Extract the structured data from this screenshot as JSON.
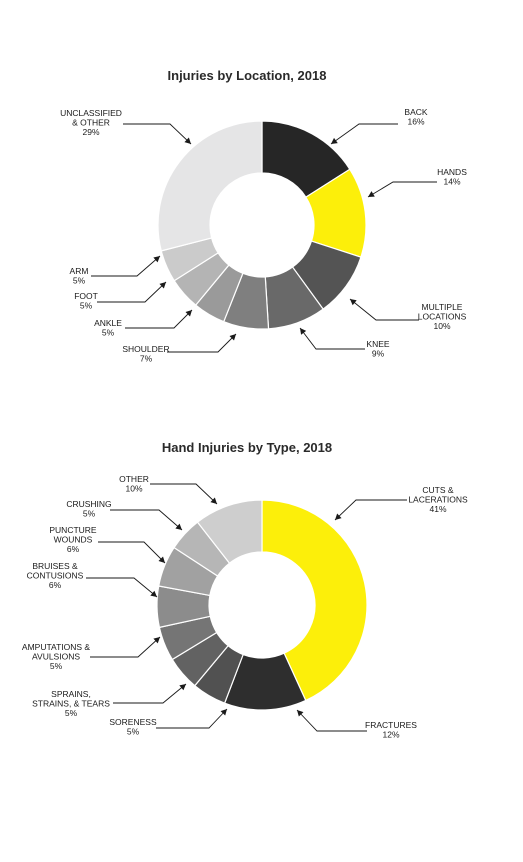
{
  "chart_data": [
    {
      "type": "pie",
      "title": "Injuries by Location, 2018",
      "slices": [
        {
          "label": "BACK",
          "value": 16,
          "value_label": "16%",
          "color": "#262626"
        },
        {
          "label": "HANDS",
          "value": 14,
          "value_label": "14%",
          "color": "#fcef0a"
        },
        {
          "label": "MULTIPLE LOCATIONS",
          "value": 10,
          "value_label": "10%",
          "color": "#545454"
        },
        {
          "label": "KNEE",
          "value": 9,
          "value_label": "9%",
          "color": "#696969"
        },
        {
          "label": "SHOULDER",
          "value": 7,
          "value_label": "7%",
          "color": "#7f7f7f"
        },
        {
          "label": "ANKLE",
          "value": 5,
          "value_label": "5%",
          "color": "#9a9a9a"
        },
        {
          "label": "FOOT",
          "value": 5,
          "value_label": "5%",
          "color": "#b4b4b4"
        },
        {
          "label": "ARM",
          "value": 5,
          "value_label": "5%",
          "color": "#cbcbcb"
        },
        {
          "label": "UNCLASSIFIED & OTHER",
          "value": 29,
          "value_label": "29%",
          "color": "#e5e5e6"
        }
      ]
    },
    {
      "type": "pie",
      "title": "Hand Injuries by Type, 2018",
      "slices": [
        {
          "label": "CUTS & LACERATIONS",
          "value": 41,
          "value_label": "41%",
          "color": "#fcef0a"
        },
        {
          "label": "FRACTURES",
          "value": 12,
          "value_label": "12%",
          "color": "#2e2e2e"
        },
        {
          "label": "SORENESS",
          "value": 5,
          "value_label": "5%",
          "color": "#515151"
        },
        {
          "label": "SPRAINS, STRAINS, & TEARS",
          "value": 5,
          "value_label": "5%",
          "color": "#626262"
        },
        {
          "label": "AMPUTATIONS & AVULSIONS",
          "value": 5,
          "value_label": "5%",
          "color": "#757575"
        },
        {
          "label": "BRUISES & CONTUSIONS",
          "value": 6,
          "value_label": "6%",
          "color": "#8c8c8c"
        },
        {
          "label": "PUNCTURE WOUNDS",
          "value": 6,
          "value_label": "6%",
          "color": "#a1a1a1"
        },
        {
          "label": "CRUSHING",
          "value": 5,
          "value_label": "5%",
          "color": "#b6b6b6"
        },
        {
          "label": "OTHER",
          "value": 10,
          "value_label": "10%",
          "color": "#cecece"
        }
      ]
    }
  ]
}
